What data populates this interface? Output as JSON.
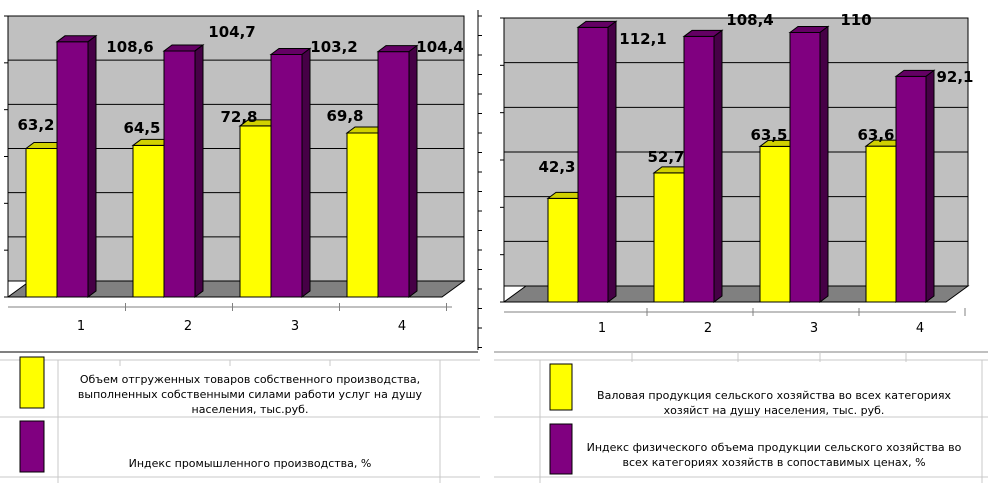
{
  "colors": {
    "yellow": "#FFFF00",
    "purple": "#800080",
    "wall": "#C0C0C0",
    "floor": "#808080"
  },
  "chart_data": [
    {
      "type": "bar",
      "categories": [
        "1",
        "2",
        "3",
        "4"
      ],
      "series": [
        {
          "name": "Объем отгруженных товаров собственного производства, выполненных собственными силами работи услуг на душу населения, тыс.руб.",
          "values": [
            63.2,
            64.5,
            72.8,
            69.8
          ],
          "color": "#FFFF00"
        },
        {
          "name": "Индекс промышленного производства, %",
          "values": [
            108.6,
            104.7,
            103.2,
            104.4
          ],
          "color": "#800080"
        }
      ],
      "data_labels": [
        [
          "63,2",
          "64,5",
          "72,8",
          "69,8"
        ],
        [
          "108,6",
          "104,7",
          "103,2",
          "104,4"
        ]
      ],
      "legend": [
        "Объем отгруженных товаров собственного производства, выполненных собственными силами работи услуг на душу населения, тыс.руб.",
        "Индекс промышленного производства, %"
      ],
      "legend_placement": "bottom",
      "grid": true,
      "ylim": [
        0,
        120
      ]
    },
    {
      "type": "bar",
      "categories": [
        "1",
        "2",
        "3",
        "4"
      ],
      "series": [
        {
          "name": "Валовая продукция сельского хозяйства во всех категориях хозяйст на душу населения, тыс. руб.",
          "values": [
            42.3,
            52.7,
            63.5,
            63.6
          ],
          "color": "#FFFF00"
        },
        {
          "name": "Индекс физического объема продукции сельского хозяйства во всех категориях хозяйств в сопоставимых ценах, %",
          "values": [
            112.1,
            108.4,
            110,
            92.1
          ],
          "color": "#800080"
        }
      ],
      "data_labels": [
        [
          "42,3",
          "52,7",
          "63,5",
          "63,6"
        ],
        [
          "112,1",
          "108,4",
          "110",
          "92,1"
        ]
      ],
      "legend": [
        "Валовая продукция сельского хозяйства во всех категориях хозяйст на душу населения, тыс. руб.",
        "Индекс физического объема продукции сельского хозяйства во всех категориях хозяйств в сопоставимых ценах, %"
      ],
      "legend_placement": "bottom",
      "grid": true,
      "ylim": [
        0,
        120
      ]
    }
  ]
}
